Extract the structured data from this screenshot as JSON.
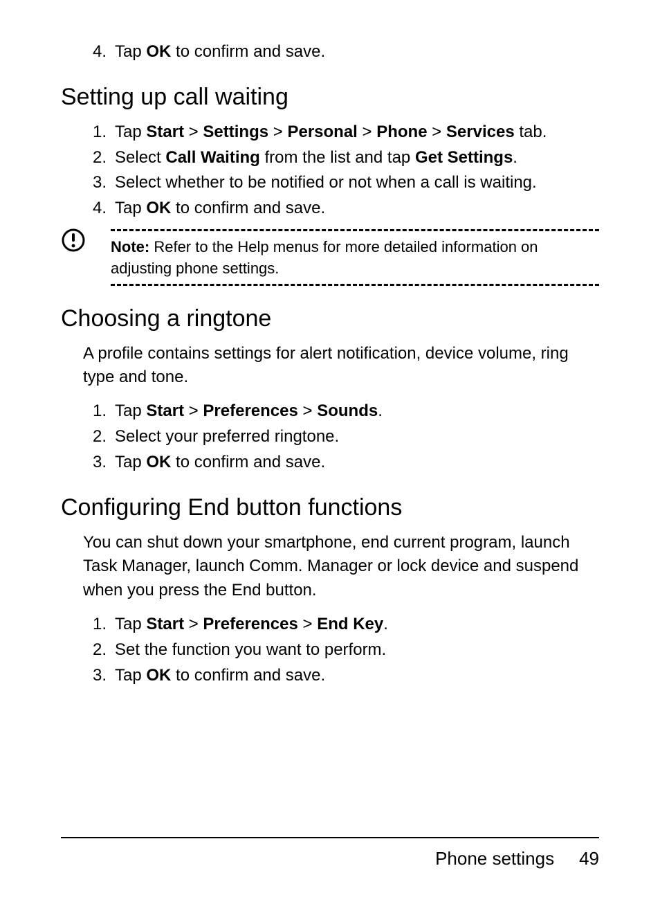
{
  "intro_list": [
    {
      "n": "4.",
      "pre": "Tap ",
      "bold1": "OK",
      "post": " to confirm and save."
    }
  ],
  "section1": {
    "title": "Setting up call waiting",
    "items": [
      {
        "n": "1.",
        "runs": [
          {
            "t": "Tap "
          },
          {
            "t": "Start",
            "b": true
          },
          {
            "t": " > "
          },
          {
            "t": "Settings",
            "b": true
          },
          {
            "t": " > "
          },
          {
            "t": "Personal",
            "b": true
          },
          {
            "t": " > "
          },
          {
            "t": "Phone",
            "b": true
          },
          {
            "t": " > "
          },
          {
            "t": "Services",
            "b": true
          },
          {
            "t": " tab."
          }
        ]
      },
      {
        "n": "2.",
        "runs": [
          {
            "t": "Select "
          },
          {
            "t": "Call Waiting",
            "b": true
          },
          {
            "t": " from the list and tap "
          },
          {
            "t": "Get Settings",
            "b": true
          },
          {
            "t": "."
          }
        ]
      },
      {
        "n": "3.",
        "runs": [
          {
            "t": "Select whether to be notified or not when a call is waiting."
          }
        ]
      },
      {
        "n": "4.",
        "runs": [
          {
            "t": "Tap "
          },
          {
            "t": "OK",
            "b": true
          },
          {
            "t": " to confirm and save."
          }
        ]
      }
    ]
  },
  "note": {
    "label": "Note:",
    "text": " Refer to the Help menus for more detailed information on adjusting phone settings."
  },
  "section2": {
    "title": "Choosing a ringtone",
    "para": "A profile contains settings for alert notification, device volume, ring type and tone.",
    "items": [
      {
        "n": "1.",
        "runs": [
          {
            "t": "Tap "
          },
          {
            "t": "Start",
            "b": true
          },
          {
            "t": " > "
          },
          {
            "t": "Preferences",
            "b": true
          },
          {
            "t": " > "
          },
          {
            "t": "Sounds",
            "b": true
          },
          {
            "t": "."
          }
        ]
      },
      {
        "n": "2.",
        "runs": [
          {
            "t": "Select your preferred ringtone."
          }
        ]
      },
      {
        "n": "3.",
        "runs": [
          {
            "t": "Tap "
          },
          {
            "t": "OK",
            "b": true
          },
          {
            "t": " to confirm and save."
          }
        ]
      }
    ]
  },
  "section3": {
    "title": "Configuring End button functions",
    "para": "You can shut down your smartphone, end current program, launch Task Manager, launch Comm. Manager or lock device and suspend when you press the End button.",
    "items": [
      {
        "n": "1.",
        "runs": [
          {
            "t": "Tap "
          },
          {
            "t": "Start",
            "b": true
          },
          {
            "t": " > "
          },
          {
            "t": "Preferences",
            "b": true
          },
          {
            "t": " > "
          },
          {
            "t": "End Key",
            "b": true
          },
          {
            "t": "."
          }
        ]
      },
      {
        "n": "2.",
        "runs": [
          {
            "t": "Set the function you want to perform."
          }
        ]
      },
      {
        "n": "3.",
        "runs": [
          {
            "t": "Tap "
          },
          {
            "t": "OK",
            "b": true
          },
          {
            "t": " to confirm and save."
          }
        ]
      }
    ]
  },
  "footer": {
    "section": "Phone settings",
    "page": "49"
  }
}
